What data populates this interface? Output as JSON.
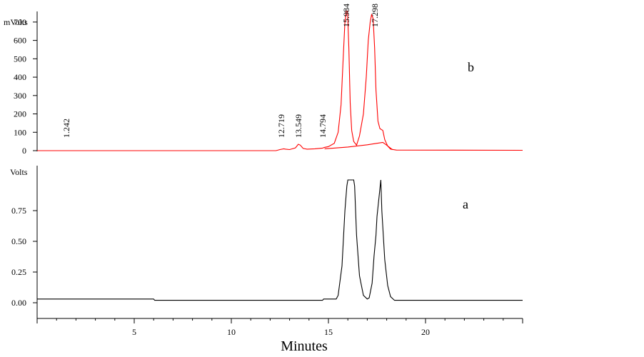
{
  "chart_data": {
    "type": "line",
    "xlabel": "Minutes",
    "xlim": [
      0,
      25
    ],
    "x_ticks": [
      "5",
      "10",
      "15",
      "20"
    ],
    "panels": [
      {
        "id": "b",
        "panel_label": "b",
        "ylabel": "mVolts",
        "ylim": [
          0,
          750
        ],
        "y_ticks": [
          "0",
          "100",
          "200",
          "300",
          "400",
          "500",
          "600",
          "700"
        ],
        "color": "#ff0000",
        "peak_labels": [
          "1.242",
          "12.719",
          "13.549",
          "14.794",
          "15.984",
          "17.298"
        ],
        "series": [
          {
            "x": [
              0,
              12.3,
              12.5,
              12.7,
              12.8,
              13.0,
              13.3,
              13.45,
              13.55,
              13.7,
              13.9,
              14.3,
              14.7,
              14.8,
              15.0,
              15.3,
              15.5,
              15.65,
              15.75,
              15.85,
              15.92,
              15.98,
              16.05,
              16.12,
              16.2,
              16.3,
              16.45,
              16.6,
              16.8,
              16.95,
              17.05,
              17.15,
              17.22,
              17.3,
              17.38,
              17.45,
              17.55,
              17.65,
              17.8,
              17.9,
              18.05,
              18.2,
              18.5,
              25
            ],
            "y": [
              0,
              0,
              6,
              10,
              8,
              6,
              15,
              35,
              30,
              12,
              8,
              10,
              14,
              18,
              22,
              40,
              100,
              250,
              480,
              700,
              760,
              760,
              560,
              260,
              110,
              50,
              30,
              80,
              200,
              400,
              600,
              700,
              740,
              720,
              560,
              330,
              160,
              120,
              110,
              60,
              25,
              8,
              3,
              2
            ]
          },
          {
            "x": [
              14.8,
              16.0,
              17.0,
              17.5,
              17.8,
              18.0,
              18.3
            ],
            "y": [
              10,
              20,
              32,
              40,
              45,
              30,
              5
            ]
          }
        ]
      },
      {
        "id": "a",
        "panel_label": "a",
        "ylabel": "Volts",
        "ylim": [
          0,
          1.0
        ],
        "y_ticks": [
          "0.00",
          "0.25",
          "0.50",
          "0.75"
        ],
        "color": "#000000",
        "series": [
          {
            "x": [
              0,
              5.8,
              6.0,
              6.05,
              14.7,
              14.75,
              15.0,
              15.4,
              15.5,
              15.7,
              15.85,
              15.95,
              16.0,
              16.3,
              16.35,
              16.45,
              16.6,
              16.8,
              17.0,
              17.1,
              17.25,
              17.35,
              17.45,
              17.5,
              17.7,
              17.75,
              17.9,
              18.05,
              18.2,
              18.4,
              25
            ],
            "y": [
              0.03,
              0.03,
              0.03,
              0.02,
              0.02,
              0.03,
              0.03,
              0.03,
              0.06,
              0.3,
              0.75,
              0.95,
              1.0,
              1.0,
              0.95,
              0.55,
              0.22,
              0.06,
              0.03,
              0.04,
              0.16,
              0.38,
              0.55,
              0.7,
              1.0,
              0.75,
              0.35,
              0.14,
              0.05,
              0.02,
              0.02
            ]
          }
        ]
      }
    ]
  }
}
